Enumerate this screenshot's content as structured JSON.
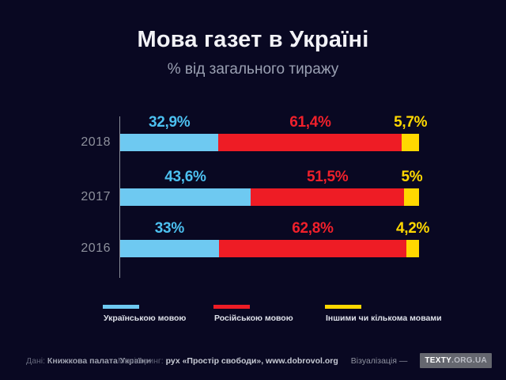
{
  "header": {
    "title": "Мова газет в Україні",
    "subtitle": "% від загального тиражу"
  },
  "chart_data": {
    "type": "bar",
    "orientation": "horizontal-stacked",
    "unit": "%",
    "title": "Мова газет в Україні",
    "subtitle": "% від загального тиражу",
    "categories": [
      "2018",
      "2017",
      "2016"
    ],
    "series": [
      {
        "name": "Українською мовою",
        "color": "#6ec9f1",
        "label_color": "#4cc0f0",
        "values": [
          32.9,
          43.6,
          33
        ]
      },
      {
        "name": "Російською мовою",
        "color": "#ee1c25",
        "label_color": "#f0202b",
        "values": [
          61.4,
          51.5,
          62.8
        ]
      },
      {
        "name": "Іншими чи кількома мовами",
        "color": "#ffd800",
        "label_color": "#ffd800",
        "values": [
          5.7,
          5,
          4.2
        ]
      }
    ],
    "value_labels": [
      [
        "32,9%",
        "61,4%",
        "5,7%"
      ],
      [
        "43,6%",
        "51,5%",
        "5%"
      ],
      [
        "33%",
        "62,8%",
        "4,2%"
      ]
    ],
    "xlim": [
      0,
      100
    ],
    "grid": false,
    "legend_position": "bottom"
  },
  "legend": {
    "items": [
      {
        "label": "Українською мовою",
        "color": "#6ec9f1"
      },
      {
        "label": "Російською мовою",
        "color": "#ee1c25"
      },
      {
        "label": "Іншими чи кількома мовами",
        "color": "#ffd800"
      }
    ]
  },
  "footer": {
    "source_label": "Дані:",
    "source": "Книжкова палата України",
    "monitoring_label": "Моніторинг:",
    "monitoring": "рух «Простір свободи», www.dobrovol.org",
    "visualization_label": "Візуалізація —",
    "brand": "TEXTY",
    "brand_suffix": ".ORG.UA"
  },
  "colors": {
    "background": "#090822",
    "title": "#f2f2f6",
    "subtitle": "#9aa0b2",
    "axis": "#8a8d98",
    "year_label": "#8d909c",
    "badge_background": "#65676f"
  }
}
